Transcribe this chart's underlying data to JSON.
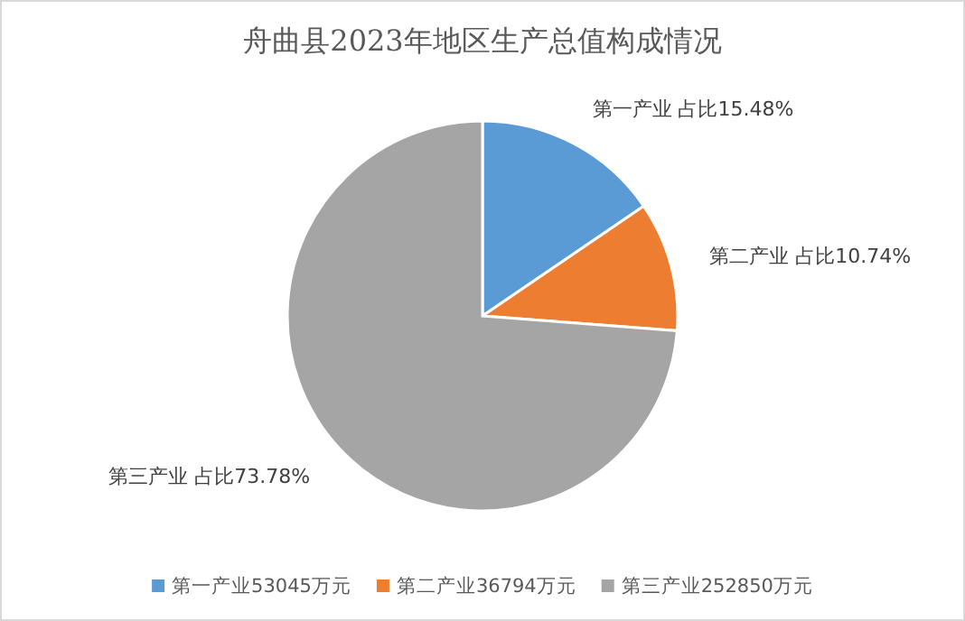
{
  "chart_data": {
    "type": "pie",
    "title": "舟曲县2023年地区生产总值构成情况",
    "categories": [
      "第一产业53045万元",
      "第二产业36794万元",
      "第三产业252850万元"
    ],
    "values": [
      53045,
      36794,
      252850
    ],
    "colors": [
      "#5b9bd5",
      "#ed7d31",
      "#a5a5a5"
    ],
    "value_labels": [
      "第一产业 占比15.48%",
      "第二产业 占比10.74%",
      "第三产业 占比73.78%"
    ],
    "legend": "bottom"
  }
}
